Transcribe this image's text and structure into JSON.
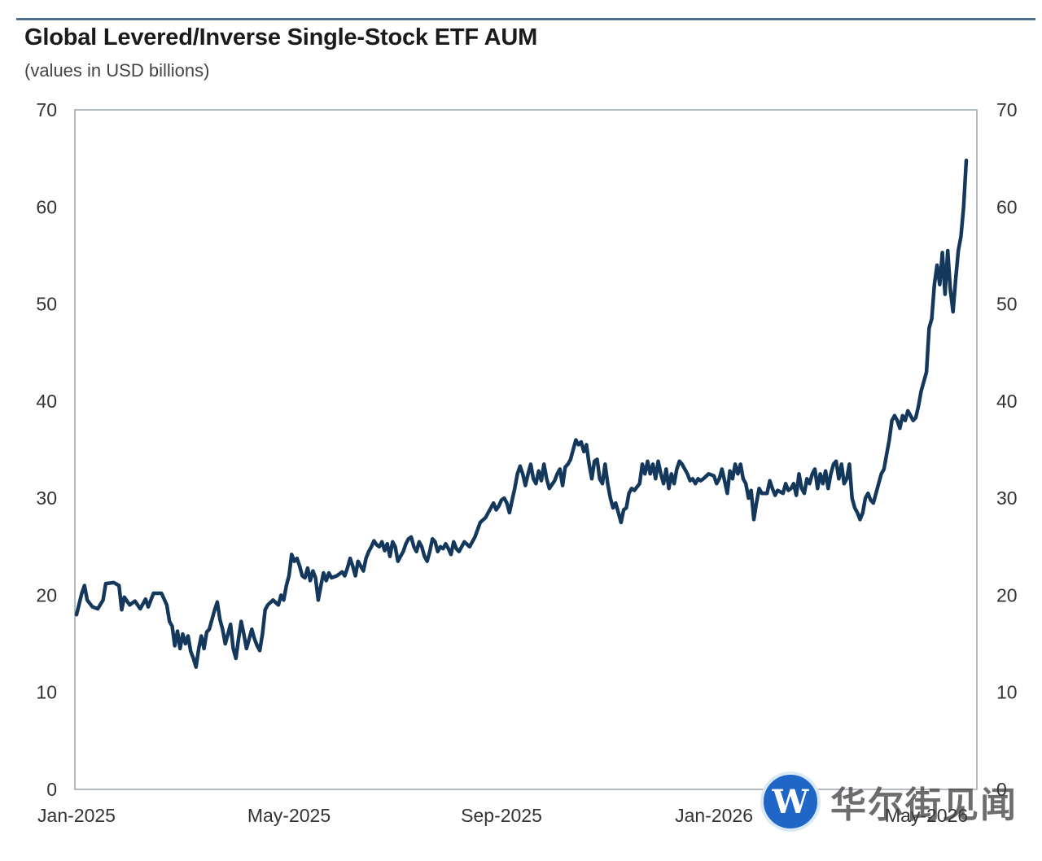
{
  "title": "Global Levered/Inverse Single-Stock ETF AUM",
  "subtitle": "(values in USD billions)",
  "watermark": {
    "logo_letter": "W",
    "text": "华尔街见闻"
  },
  "colors": {
    "line": "#14385c",
    "axis": "#9aa4ae",
    "topline": "#4d6f8f"
  },
  "chart_data": {
    "type": "line",
    "title": "Global Levered/Inverse Single-Stock ETF AUM",
    "subtitle": "(values in USD billions)",
    "xlabel": "",
    "ylabel": "",
    "ylim": [
      0,
      70
    ],
    "yticks": [
      0,
      10,
      20,
      30,
      40,
      50,
      60,
      70
    ],
    "xlim": [
      0,
      16.75
    ],
    "xticks": [
      {
        "x": 0,
        "label": "Jan-2025"
      },
      {
        "x": 4,
        "label": "May-2025"
      },
      {
        "x": 8,
        "label": "Sep-2025"
      },
      {
        "x": 12,
        "label": "Jan-2026"
      },
      {
        "x": 16,
        "label": "May-2026"
      }
    ],
    "x_unit": "months since Jan-2025",
    "grid": false,
    "legend": "none",
    "series": [
      {
        "values": [
          [
            0.0,
            18.0
          ],
          [
            0.1,
            20.2
          ],
          [
            0.15,
            21.0
          ],
          [
            0.2,
            19.5
          ],
          [
            0.3,
            18.8
          ],
          [
            0.4,
            18.6
          ],
          [
            0.5,
            19.5
          ],
          [
            0.55,
            21.2
          ],
          [
            0.7,
            21.3
          ],
          [
            0.8,
            21.0
          ],
          [
            0.85,
            18.5
          ],
          [
            0.9,
            19.8
          ],
          [
            1.0,
            19.0
          ],
          [
            1.1,
            19.4
          ],
          [
            1.2,
            18.6
          ],
          [
            1.3,
            19.6
          ],
          [
            1.35,
            18.8
          ],
          [
            1.45,
            20.2
          ],
          [
            1.6,
            20.2
          ],
          [
            1.7,
            19.0
          ],
          [
            1.75,
            17.3
          ],
          [
            1.8,
            16.8
          ],
          [
            1.85,
            14.8
          ],
          [
            1.9,
            16.3
          ],
          [
            1.95,
            14.5
          ],
          [
            2.0,
            16.0
          ],
          [
            2.05,
            15.0
          ],
          [
            2.1,
            15.8
          ],
          [
            2.15,
            14.2
          ],
          [
            2.2,
            13.5
          ],
          [
            2.25,
            12.6
          ],
          [
            2.3,
            14.5
          ],
          [
            2.35,
            15.8
          ],
          [
            2.4,
            14.5
          ],
          [
            2.45,
            16.2
          ],
          [
            2.5,
            16.5
          ],
          [
            2.55,
            17.5
          ],
          [
            2.6,
            18.5
          ],
          [
            2.65,
            19.3
          ],
          [
            2.7,
            17.5
          ],
          [
            2.75,
            16.5
          ],
          [
            2.8,
            15.0
          ],
          [
            2.85,
            16.0
          ],
          [
            2.9,
            17.0
          ],
          [
            2.95,
            14.5
          ],
          [
            3.0,
            13.5
          ],
          [
            3.05,
            15.5
          ],
          [
            3.1,
            17.3
          ],
          [
            3.15,
            16.0
          ],
          [
            3.2,
            14.5
          ],
          [
            3.25,
            15.5
          ],
          [
            3.3,
            16.5
          ],
          [
            3.35,
            15.5
          ],
          [
            3.4,
            14.8
          ],
          [
            3.45,
            14.3
          ],
          [
            3.5,
            16.0
          ],
          [
            3.55,
            18.5
          ],
          [
            3.6,
            19.0
          ],
          [
            3.7,
            19.5
          ],
          [
            3.8,
            19.0
          ],
          [
            3.85,
            20.0
          ],
          [
            3.9,
            19.5
          ],
          [
            3.95,
            21.0
          ],
          [
            4.0,
            22.0
          ],
          [
            4.05,
            24.2
          ],
          [
            4.1,
            23.5
          ],
          [
            4.15,
            23.8
          ],
          [
            4.2,
            23.0
          ],
          [
            4.25,
            22.0
          ],
          [
            4.3,
            21.8
          ],
          [
            4.35,
            22.8
          ],
          [
            4.4,
            21.5
          ],
          [
            4.45,
            22.5
          ],
          [
            4.5,
            21.8
          ],
          [
            4.55,
            19.5
          ],
          [
            4.6,
            21.0
          ],
          [
            4.65,
            22.3
          ],
          [
            4.7,
            21.5
          ],
          [
            4.75,
            22.3
          ],
          [
            4.8,
            21.8
          ],
          [
            4.9,
            22.0
          ],
          [
            5.0,
            22.4
          ],
          [
            5.05,
            22.0
          ],
          [
            5.1,
            22.8
          ],
          [
            5.15,
            23.8
          ],
          [
            5.2,
            23.0
          ],
          [
            5.25,
            22.0
          ],
          [
            5.3,
            23.5
          ],
          [
            5.35,
            23.0
          ],
          [
            5.4,
            22.5
          ],
          [
            5.45,
            23.8
          ],
          [
            5.5,
            24.5
          ],
          [
            5.55,
            25.0
          ],
          [
            5.6,
            25.6
          ],
          [
            5.65,
            25.2
          ],
          [
            5.7,
            25.0
          ],
          [
            5.75,
            25.5
          ],
          [
            5.8,
            24.6
          ],
          [
            5.85,
            25.3
          ],
          [
            5.9,
            24.0
          ],
          [
            5.95,
            25.5
          ],
          [
            6.0,
            25.0
          ],
          [
            6.05,
            23.5
          ],
          [
            6.1,
            24.0
          ],
          [
            6.15,
            24.5
          ],
          [
            6.2,
            25.3
          ],
          [
            6.25,
            25.8
          ],
          [
            6.3,
            26.0
          ],
          [
            6.35,
            25.0
          ],
          [
            6.4,
            24.5
          ],
          [
            6.45,
            25.5
          ],
          [
            6.5,
            25.0
          ],
          [
            6.55,
            24.0
          ],
          [
            6.6,
            23.5
          ],
          [
            6.65,
            24.5
          ],
          [
            6.7,
            25.8
          ],
          [
            6.75,
            25.5
          ],
          [
            6.8,
            24.5
          ],
          [
            6.85,
            25.0
          ],
          [
            6.9,
            24.8
          ],
          [
            6.95,
            25.3
          ],
          [
            7.0,
            24.8
          ],
          [
            7.05,
            24.2
          ],
          [
            7.1,
            25.5
          ],
          [
            7.15,
            24.8
          ],
          [
            7.2,
            24.5
          ],
          [
            7.3,
            25.5
          ],
          [
            7.4,
            25.0
          ],
          [
            7.5,
            26.0
          ],
          [
            7.6,
            27.5
          ],
          [
            7.7,
            28.0
          ],
          [
            7.75,
            28.5
          ],
          [
            7.8,
            29.0
          ],
          [
            7.85,
            29.5
          ],
          [
            7.9,
            28.8
          ],
          [
            7.95,
            29.2
          ],
          [
            8.0,
            29.8
          ],
          [
            8.05,
            30.0
          ],
          [
            8.1,
            29.5
          ],
          [
            8.15,
            28.5
          ],
          [
            8.2,
            29.8
          ],
          [
            8.25,
            31.0
          ],
          [
            8.3,
            32.5
          ],
          [
            8.35,
            33.3
          ],
          [
            8.4,
            32.5
          ],
          [
            8.45,
            31.3
          ],
          [
            8.5,
            32.5
          ],
          [
            8.55,
            33.5
          ],
          [
            8.6,
            32.0
          ],
          [
            8.65,
            31.5
          ],
          [
            8.7,
            32.8
          ],
          [
            8.75,
            31.8
          ],
          [
            8.8,
            33.5
          ],
          [
            8.85,
            32.0
          ],
          [
            8.9,
            31.0
          ],
          [
            9.0,
            31.8
          ],
          [
            9.05,
            32.5
          ],
          [
            9.1,
            33.0
          ],
          [
            9.15,
            31.3
          ],
          [
            9.2,
            33.2
          ],
          [
            9.25,
            33.5
          ],
          [
            9.3,
            34.0
          ],
          [
            9.35,
            35.0
          ],
          [
            9.4,
            36.0
          ],
          [
            9.45,
            35.5
          ],
          [
            9.5,
            35.8
          ],
          [
            9.55,
            34.8
          ],
          [
            9.6,
            35.5
          ],
          [
            9.65,
            33.5
          ],
          [
            9.7,
            32.0
          ],
          [
            9.75,
            33.8
          ],
          [
            9.8,
            34.0
          ],
          [
            9.85,
            32.0
          ],
          [
            9.9,
            31.5
          ],
          [
            9.95,
            33.5
          ],
          [
            10.0,
            31.5
          ],
          [
            10.05,
            30.0
          ],
          [
            10.1,
            29.0
          ],
          [
            10.15,
            29.5
          ],
          [
            10.2,
            28.5
          ],
          [
            10.25,
            27.5
          ],
          [
            10.3,
            28.8
          ],
          [
            10.35,
            29.0
          ],
          [
            10.4,
            30.5
          ],
          [
            10.45,
            31.0
          ],
          [
            10.5,
            30.8
          ],
          [
            10.6,
            31.5
          ],
          [
            10.65,
            33.5
          ],
          [
            10.7,
            32.5
          ],
          [
            10.75,
            33.8
          ],
          [
            10.8,
            32.5
          ],
          [
            10.85,
            33.5
          ],
          [
            10.9,
            32.0
          ],
          [
            10.95,
            33.8
          ],
          [
            11.0,
            32.5
          ],
          [
            11.05,
            31.5
          ],
          [
            11.1,
            33.0
          ],
          [
            11.15,
            31.0
          ],
          [
            11.2,
            32.5
          ],
          [
            11.25,
            31.5
          ],
          [
            11.3,
            33.0
          ],
          [
            11.35,
            33.8
          ],
          [
            11.4,
            33.5
          ],
          [
            11.45,
            33.0
          ],
          [
            11.5,
            32.5
          ],
          [
            11.55,
            31.8
          ],
          [
            11.6,
            32.0
          ],
          [
            11.65,
            31.5
          ],
          [
            11.7,
            32.0
          ],
          [
            11.75,
            31.8
          ],
          [
            11.8,
            32.0
          ],
          [
            11.9,
            32.5
          ],
          [
            12.0,
            32.3
          ],
          [
            12.05,
            31.5
          ],
          [
            12.1,
            32.0
          ],
          [
            12.15,
            33.0
          ],
          [
            12.2,
            31.8
          ],
          [
            12.25,
            30.5
          ],
          [
            12.3,
            32.8
          ],
          [
            12.35,
            32.0
          ],
          [
            12.4,
            33.5
          ],
          [
            12.45,
            32.5
          ],
          [
            12.5,
            33.5
          ],
          [
            12.55,
            32.0
          ],
          [
            12.6,
            31.5
          ],
          [
            12.65,
            30.0
          ],
          [
            12.7,
            30.8
          ],
          [
            12.75,
            27.8
          ],
          [
            12.8,
            29.5
          ],
          [
            12.85,
            31.0
          ],
          [
            12.9,
            30.5
          ],
          [
            13.0,
            30.5
          ],
          [
            13.05,
            31.8
          ],
          [
            13.1,
            31.0
          ],
          [
            13.15,
            30.3
          ],
          [
            13.2,
            30.8
          ],
          [
            13.3,
            30.5
          ],
          [
            13.35,
            31.5
          ],
          [
            13.4,
            30.8
          ],
          [
            13.45,
            31.0
          ],
          [
            13.5,
            31.5
          ],
          [
            13.55,
            30.3
          ],
          [
            13.6,
            32.5
          ],
          [
            13.65,
            31.0
          ],
          [
            13.7,
            30.5
          ],
          [
            13.75,
            32.0
          ],
          [
            13.8,
            31.5
          ],
          [
            13.85,
            32.5
          ],
          [
            13.9,
            33.0
          ],
          [
            13.95,
            31.0
          ],
          [
            14.0,
            32.5
          ],
          [
            14.05,
            31.5
          ],
          [
            14.1,
            32.8
          ],
          [
            14.15,
            31.0
          ],
          [
            14.2,
            32.5
          ],
          [
            14.25,
            33.5
          ],
          [
            14.3,
            33.8
          ],
          [
            14.35,
            32.0
          ],
          [
            14.4,
            33.5
          ],
          [
            14.45,
            31.5
          ],
          [
            14.5,
            32.0
          ],
          [
            14.55,
            33.5
          ],
          [
            14.6,
            30.0
          ],
          [
            14.65,
            29.0
          ],
          [
            14.7,
            28.5
          ],
          [
            14.75,
            27.8
          ],
          [
            14.8,
            28.5
          ],
          [
            14.85,
            30.0
          ],
          [
            14.9,
            30.5
          ],
          [
            14.95,
            29.8
          ],
          [
            15.0,
            29.5
          ],
          [
            15.05,
            30.5
          ],
          [
            15.1,
            31.5
          ],
          [
            15.15,
            32.5
          ],
          [
            15.2,
            33.0
          ],
          [
            15.25,
            34.5
          ],
          [
            15.3,
            36.0
          ],
          [
            15.35,
            38.0
          ],
          [
            15.4,
            38.5
          ],
          [
            15.45,
            38.0
          ],
          [
            15.5,
            37.2
          ],
          [
            15.55,
            38.5
          ],
          [
            15.6,
            38.0
          ],
          [
            15.65,
            39.0
          ],
          [
            15.7,
            38.5
          ],
          [
            15.75,
            38.0
          ],
          [
            15.8,
            38.3
          ],
          [
            15.85,
            39.5
          ],
          [
            15.9,
            41.0
          ],
          [
            15.95,
            42.0
          ],
          [
            16.0,
            43.0
          ],
          [
            16.05,
            47.5
          ],
          [
            16.1,
            48.5
          ],
          [
            16.15,
            52.0
          ],
          [
            16.2,
            54.0
          ],
          [
            16.25,
            52.0
          ],
          [
            16.3,
            55.3
          ],
          [
            16.35,
            51.0
          ],
          [
            16.4,
            55.5
          ],
          [
            16.45,
            51.5
          ],
          [
            16.5,
            49.2
          ],
          [
            16.55,
            52.5
          ],
          [
            16.6,
            55.5
          ],
          [
            16.65,
            57.0
          ],
          [
            16.7,
            60.0
          ],
          [
            16.75,
            64.8
          ]
        ]
      }
    ]
  }
}
